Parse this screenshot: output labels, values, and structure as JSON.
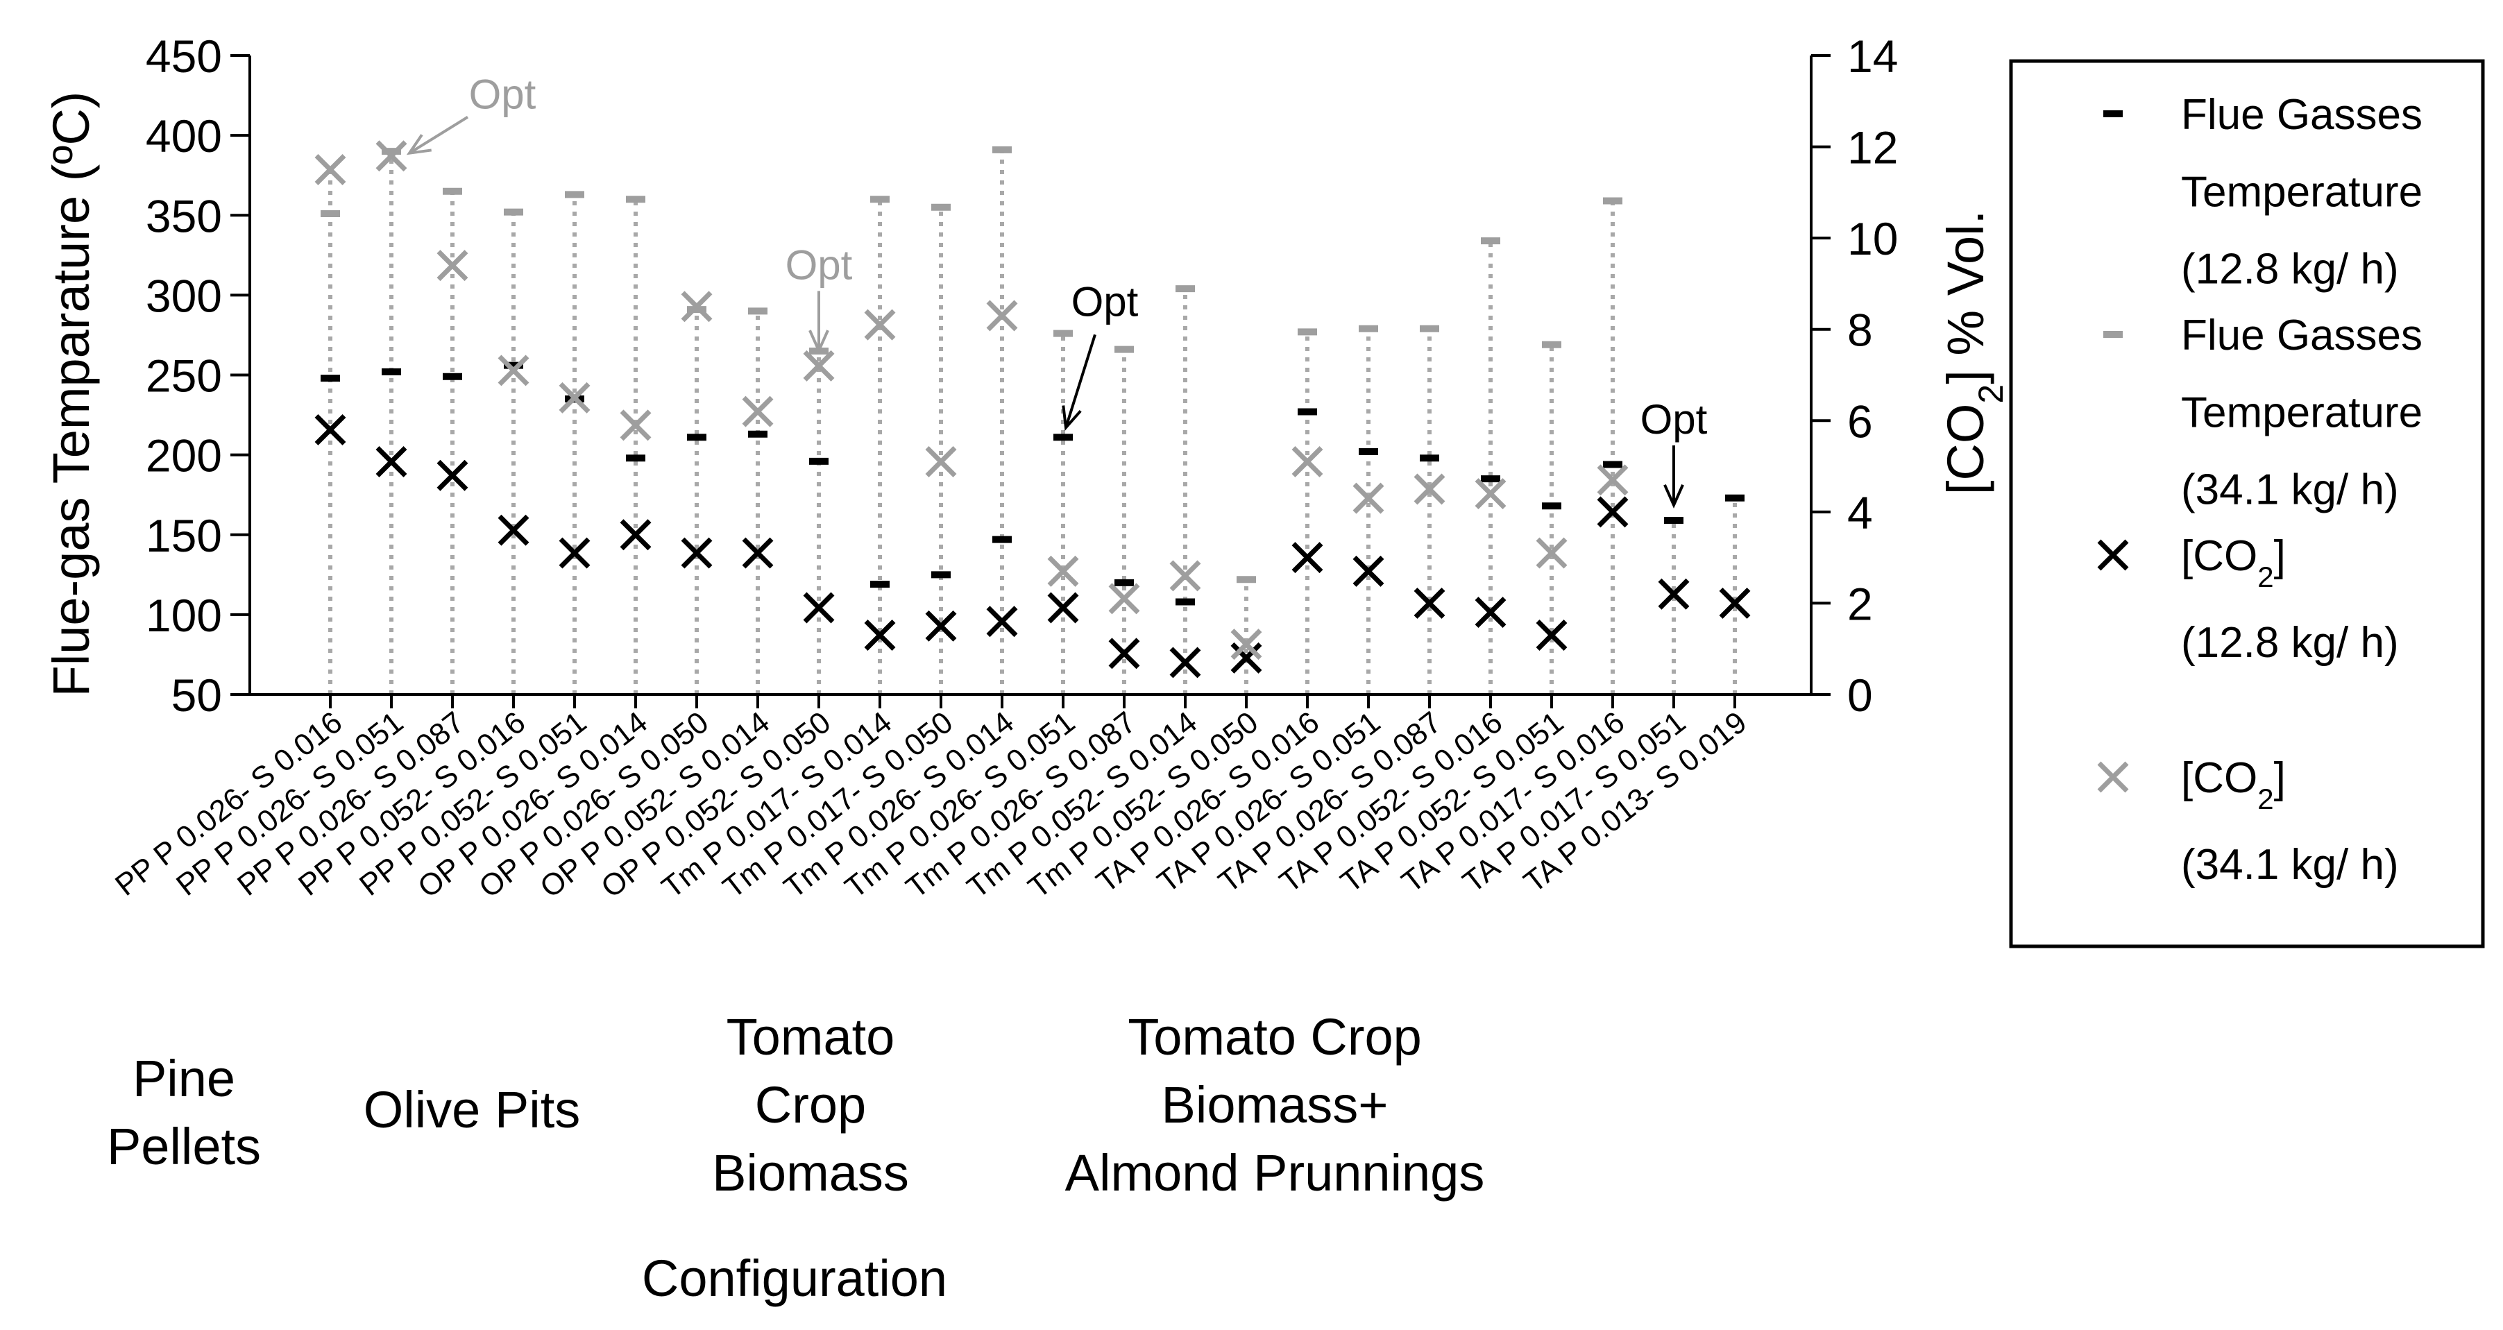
{
  "chart_data": {
    "type": "scatter",
    "title": "",
    "xlabel": "Configuration",
    "ylabel_left": "Flue-gas Temparature (ºC)",
    "ylabel_right": "[CO2] % Vol.",
    "ylabel_right_parts": [
      "[CO",
      "2",
      "] % Vol."
    ],
    "ylim_left": [
      50,
      450
    ],
    "ylim_right": [
      0,
      14
    ],
    "yticks_left": [
      50,
      100,
      150,
      200,
      250,
      300,
      350,
      400,
      450
    ],
    "yticks_right": [
      0,
      2,
      4,
      6,
      8,
      10,
      12,
      14
    ],
    "categories": [
      "PP P 0.026- S 0.016",
      "PP P 0.026- S 0.051",
      "PP P 0.026- S 0.087",
      "PP P 0.052- S 0.016",
      "PP P 0.052- S 0.051",
      "OP P 0.026- S 0.014",
      "OP P 0.026- S 0.050",
      "OP P 0.052- S 0.014",
      "OP P 0.052- S 0.050",
      "Tm P 0.017- S 0.014",
      "Tm P 0.017- S 0.050",
      "Tm P 0.026- S 0.014",
      "Tm P 0.026- S 0.051",
      "Tm P 0.026- S 0.087",
      "Tm P 0.052- S 0.014",
      "Tm P 0.052- S 0.050",
      "TA P 0.026- S 0.016",
      "TA P 0.026- S 0.051",
      "TA P 0.026- S 0.087",
      "TA P 0.052- S 0.016",
      "TA P 0.052- S 0.051",
      "TA P 0.017- S 0.016",
      "TA P 0.017- S 0.051",
      "TA P 0.013- S 0.019"
    ],
    "series": [
      {
        "name": "Flue Gasses Temperature (12.8 kg/ h)",
        "axis": "left",
        "marker": "dash",
        "color": "#000000",
        "values": [
          248,
          252,
          249,
          256,
          235,
          198,
          211,
          213,
          196,
          119,
          125,
          147,
          211,
          120,
          108,
          null,
          227,
          202,
          198,
          185,
          168,
          194,
          159,
          173
        ]
      },
      {
        "name": "Flue Gasses Temperature (34.1 kg/ h)",
        "axis": "left",
        "marker": "dash",
        "color": "#9e9e9e",
        "values": [
          351,
          390,
          365,
          352,
          363,
          360,
          291,
          290,
          265,
          360,
          355,
          391,
          276,
          266,
          304,
          122,
          277,
          279,
          279,
          334,
          269,
          359,
          null,
          null
        ]
      },
      {
        "name": "[CO2] (12.8 kg/ h)",
        "axis": "right",
        "marker": "x",
        "color": "#000000",
        "values": [
          5.8,
          5.1,
          4.8,
          3.6,
          3.1,
          3.5,
          3.1,
          3.1,
          1.9,
          1.3,
          1.5,
          1.6,
          1.9,
          0.9,
          0.7,
          0.8,
          3.0,
          2.7,
          2.0,
          1.8,
          1.3,
          4.0,
          2.2,
          2.0
        ]
      },
      {
        "name": "[CO2] (34.1 kg/ h)",
        "axis": "right",
        "marker": "x",
        "color": "#9e9e9e",
        "values": [
          11.5,
          11.8,
          9.4,
          7.1,
          6.5,
          5.9,
          8.5,
          6.2,
          7.2,
          8.1,
          5.1,
          8.3,
          2.7,
          2.1,
          2.6,
          1.1,
          5.1,
          4.3,
          4.5,
          4.4,
          3.1,
          4.7,
          null,
          null
        ]
      }
    ],
    "annotations": [
      {
        "text": "Opt",
        "category_index": 1,
        "series": "[CO2] (34.1 kg/ h)",
        "color": "#9e9e9e"
      },
      {
        "text": "Opt",
        "category_index": 8,
        "series": "[CO2] (34.1 kg/ h)",
        "color": "#9e9e9e"
      },
      {
        "text": "Opt",
        "category_index": 12,
        "series": "Flue Gasses Temperature (12.8 kg/ h)",
        "color": "#000000"
      },
      {
        "text": "Opt",
        "category_index": 22,
        "series": "Flue Gasses Temperature (12.8 kg/ h)",
        "color": "#000000"
      }
    ],
    "groups": [
      {
        "lines": [
          "Pine",
          "Pellets"
        ]
      },
      {
        "lines": [
          "Olive Pits"
        ]
      },
      {
        "lines": [
          "Tomato",
          "Crop",
          "Biomass"
        ]
      },
      {
        "lines": [
          "Tomato Crop",
          "Biomass+",
          "Almond Prunnings"
        ]
      }
    ],
    "legend": {
      "placement": "right",
      "entries": [
        {
          "series": 0,
          "lines": [
            {
              "t": "Flue Gasses"
            },
            {
              "t": "Temperature"
            },
            {
              "t": "(12.8 kg/ h)"
            }
          ]
        },
        {
          "series": 1,
          "lines": [
            {
              "t": "Flue Gasses"
            },
            {
              "t": "Temperature"
            },
            {
              "t": "(34.1 kg/ h)"
            }
          ]
        },
        {
          "series": 2,
          "lines": [
            {
              "t": "[CO",
              "sub": "2",
              "after": "]"
            },
            {
              "t": "(12.8 kg/ h)"
            }
          ]
        },
        {
          "series": 3,
          "lines": [
            {
              "t": "[CO",
              "sub": "2",
              "after": "]"
            },
            {
              "t": "(34.1 kg/ h)"
            }
          ]
        }
      ]
    },
    "grid": false,
    "drop_lines": "dotted gray vertical lines from x-axis to top marker per category"
  }
}
